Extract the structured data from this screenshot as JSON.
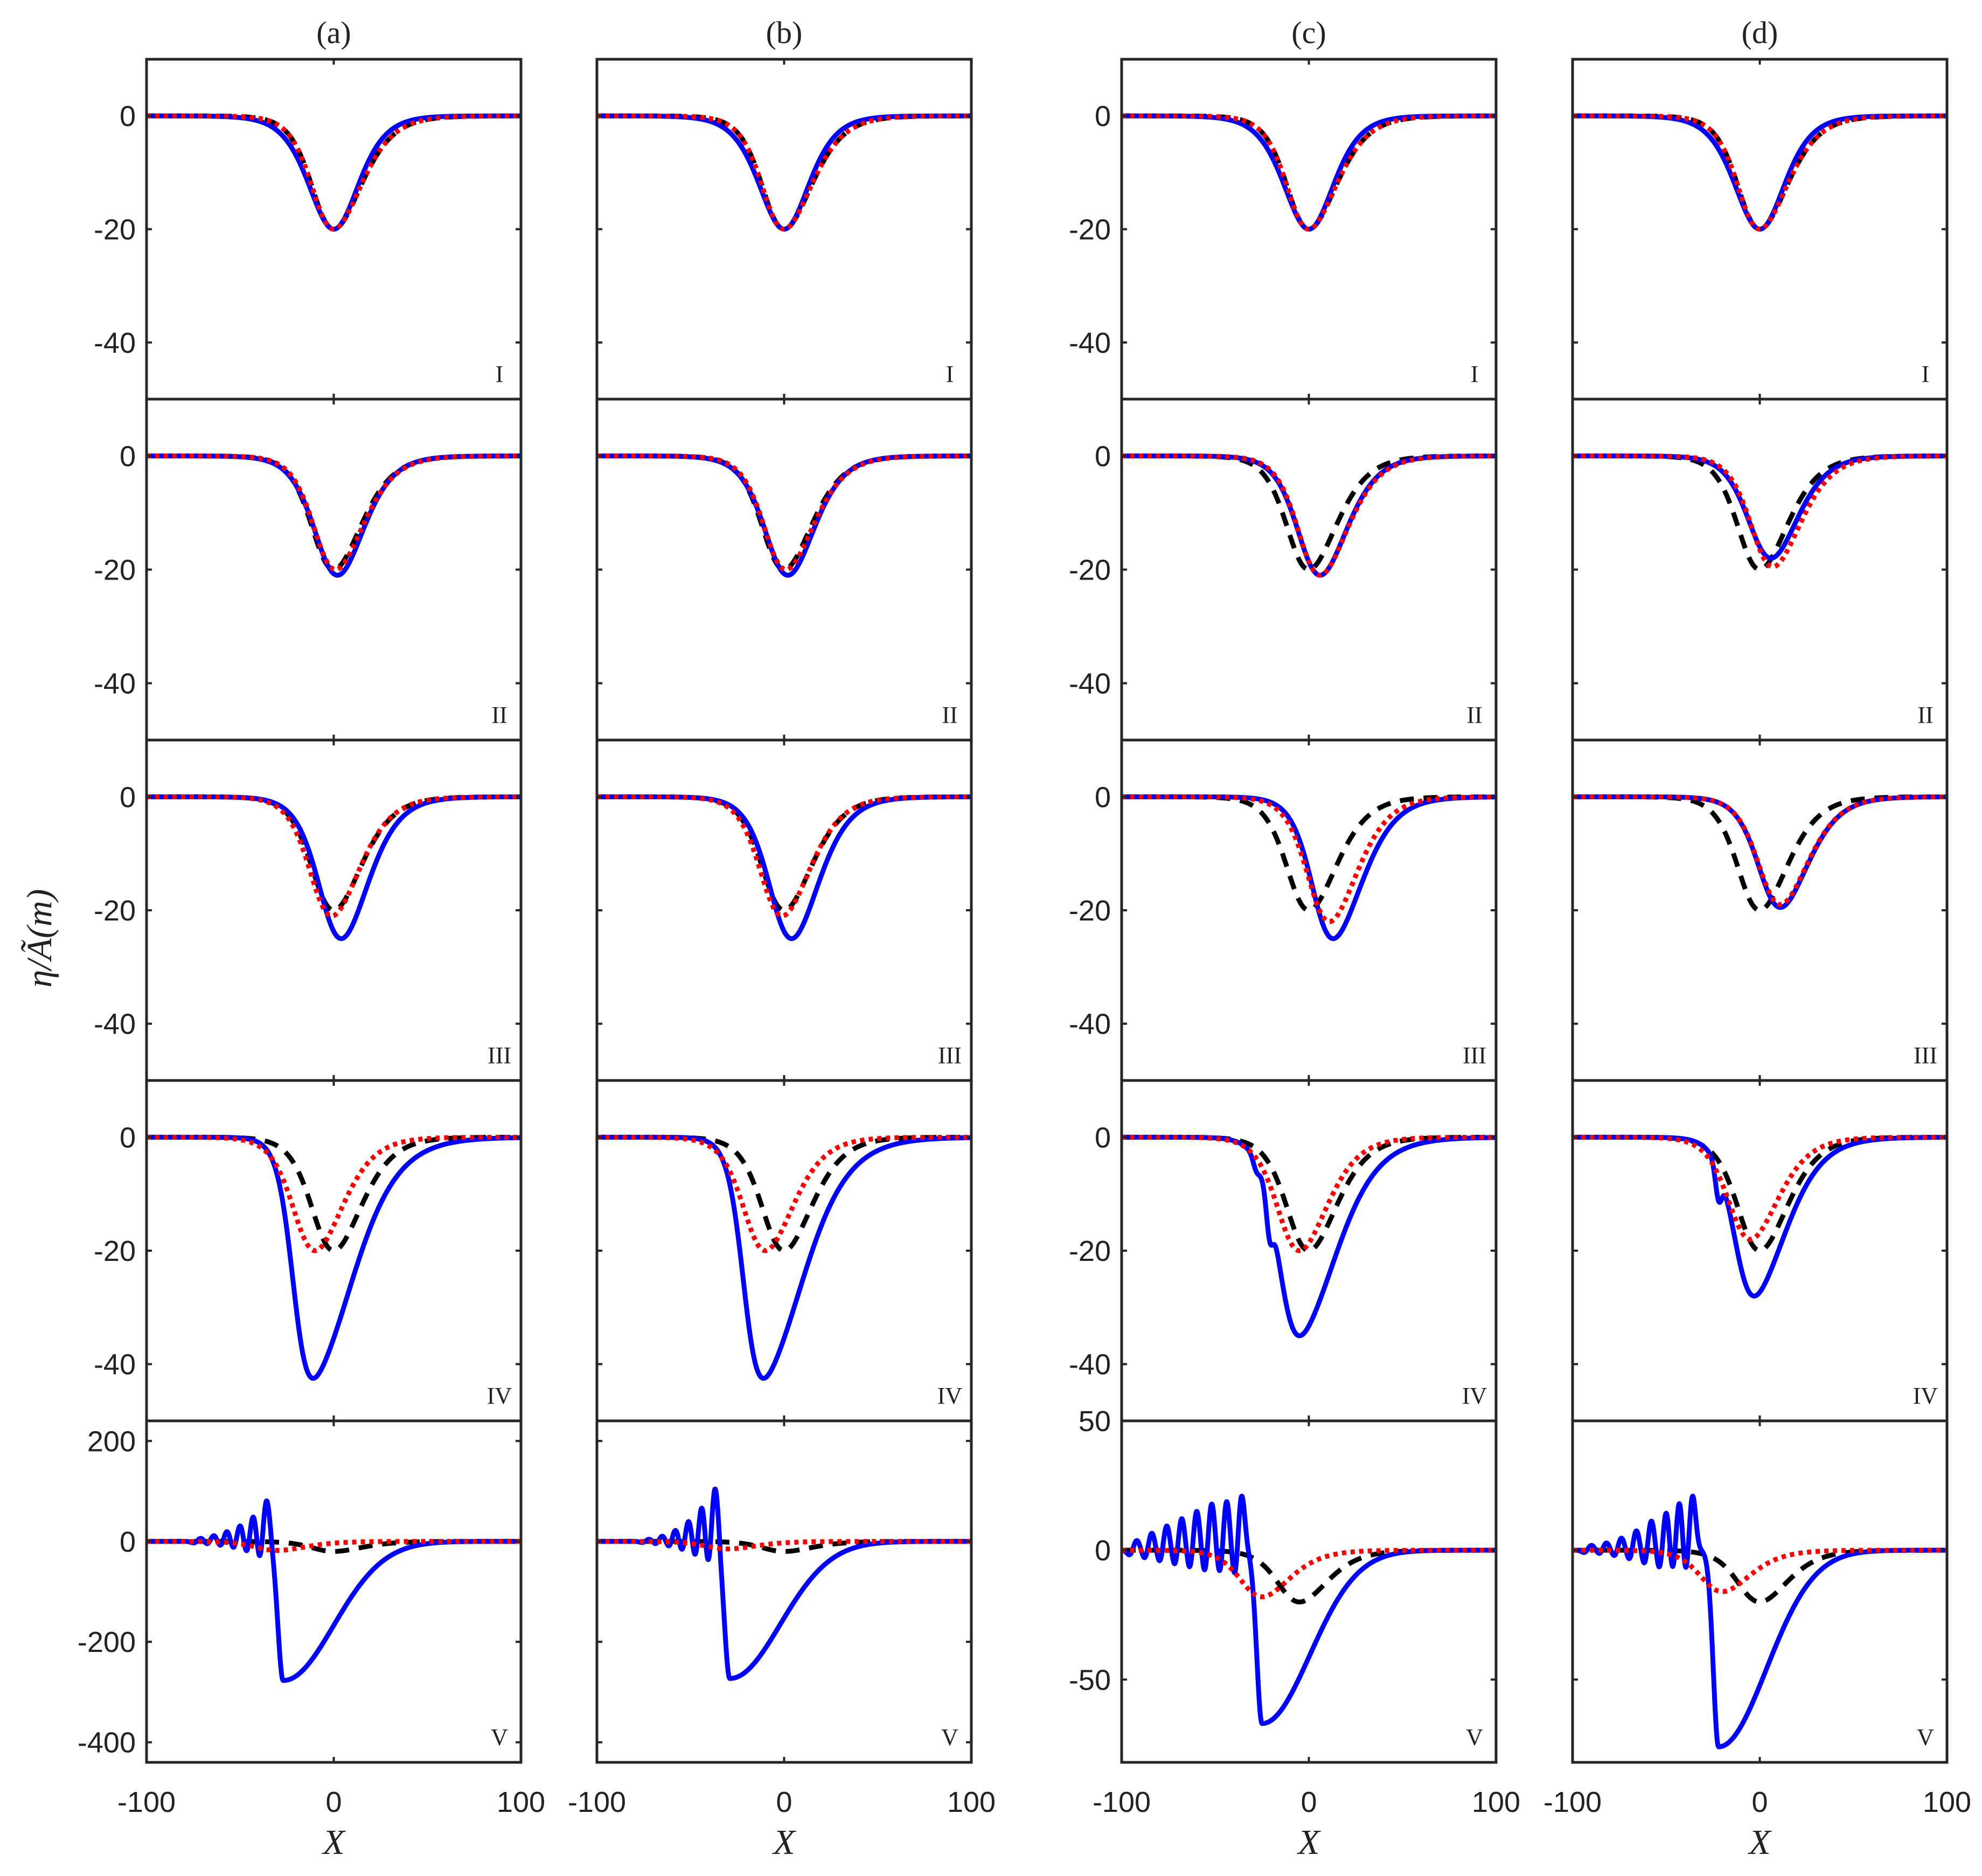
{
  "chart_data": {
    "type": "line",
    "layout": "4 columns x 5 rows of panels",
    "y_axis_label": "η/Ã(m)",
    "x_axis_label": "X",
    "column_titles": [
      "(a)",
      "(b)",
      "(c)",
      "(d)"
    ],
    "row_labels": [
      "I",
      "II",
      "III",
      "IV",
      "V"
    ],
    "xlim": [
      -100,
      100
    ],
    "x_ticks": [
      "-100",
      "0",
      "100"
    ],
    "series": [
      {
        "name": "solid",
        "color": "#0000ff",
        "style": "solid"
      },
      {
        "name": "dashed",
        "color": "#000000",
        "style": "dashed"
      },
      {
        "name": "dotted",
        "color": "#ff0000",
        "style": "dotted"
      }
    ],
    "y_axes": {
      "rows_I_to_IV": {
        "ylim": [
          -50,
          10
        ],
        "ticks": [
          0,
          -20,
          -40
        ],
        "tick_labels": [
          "0",
          "-20",
          "-40"
        ]
      },
      "row_V_a_b": {
        "ylim": [
          -440,
          240
        ],
        "ticks": [
          200,
          0,
          -200,
          -400
        ],
        "tick_labels": [
          "200",
          "0",
          "-200",
          "-400"
        ]
      },
      "row_V_c_d": {
        "ylim": [
          -82,
          50
        ],
        "ticks": [
          50,
          0,
          -50
        ],
        "tick_labels": [
          "50",
          "0",
          "-50"
        ]
      }
    },
    "panels": [
      {
        "col": 0,
        "row": 0,
        "solid": {
          "depth": 20,
          "center": 0,
          "width": 20,
          "skew": 0
        },
        "dashed": {
          "depth": 20,
          "center": 0
        },
        "dotted": {
          "depth": 20,
          "center": 0
        }
      },
      {
        "col": 0,
        "row": 1,
        "solid": {
          "depth": 21,
          "center": 2,
          "width": 20,
          "skew": 0.08
        },
        "dashed": {
          "depth": 20,
          "center": 0
        },
        "dotted": {
          "depth": 20,
          "center": 1
        }
      },
      {
        "col": 0,
        "row": 2,
        "solid": {
          "depth": 25,
          "center": 4,
          "width": 20,
          "skew": 0.12
        },
        "dashed": {
          "depth": 20,
          "center": 0
        },
        "dotted": {
          "depth": 21,
          "center": -1
        }
      },
      {
        "col": 0,
        "row": 3,
        "solid": {
          "depth": 42.5,
          "center": -11,
          "width": 22,
          "skew": 0.45
        },
        "dashed": {
          "depth": 20,
          "center": 0
        },
        "dotted": {
          "depth": 20,
          "center": -10
        }
      },
      {
        "col": 0,
        "row": 4,
        "solid": {
          "depth": 277,
          "center": -27,
          "width": 38,
          "front": -36,
          "ripples": [
            {
              "x": -36,
              "amp": 85
            },
            {
              "x": -43,
              "amp": 55
            },
            {
              "x": -50,
              "amp": 35
            },
            {
              "x": -57,
              "amp": 22
            },
            {
              "x": -64,
              "amp": 13
            },
            {
              "x": -71,
              "amp": 7
            }
          ]
        },
        "dashed": {
          "depth": 20,
          "center": 0
        },
        "dotted": {
          "depth": 18,
          "center": -30
        }
      },
      {
        "col": 1,
        "row": 0,
        "solid": {
          "depth": 20,
          "center": 0,
          "width": 20,
          "skew": 0
        },
        "dashed": {
          "depth": 20,
          "center": 0
        },
        "dotted": {
          "depth": 20,
          "center": 0
        }
      },
      {
        "col": 1,
        "row": 1,
        "solid": {
          "depth": 21,
          "center": 2,
          "width": 20,
          "skew": 0.08
        },
        "dashed": {
          "depth": 20,
          "center": 0
        },
        "dotted": {
          "depth": 20,
          "center": 1
        }
      },
      {
        "col": 1,
        "row": 2,
        "solid": {
          "depth": 25,
          "center": 4,
          "width": 20,
          "skew": 0.12
        },
        "dashed": {
          "depth": 20,
          "center": 0
        },
        "dotted": {
          "depth": 21,
          "center": -1
        }
      },
      {
        "col": 1,
        "row": 3,
        "solid": {
          "depth": 42.5,
          "center": -11,
          "width": 22,
          "skew": 0.45
        },
        "dashed": {
          "depth": 20,
          "center": 0
        },
        "dotted": {
          "depth": 20,
          "center": -10
        }
      },
      {
        "col": 1,
        "row": 4,
        "solid": {
          "depth": 273,
          "center": -29,
          "width": 38,
          "front": -37,
          "ripples": [
            {
              "x": -37,
              "amp": 110
            },
            {
              "x": -44,
              "amp": 75
            },
            {
              "x": -51,
              "amp": 45
            },
            {
              "x": -58,
              "amp": 25
            },
            {
              "x": -65,
              "amp": 12
            },
            {
              "x": -72,
              "amp": 5
            }
          ]
        },
        "dashed": {
          "depth": 20,
          "center": 0
        },
        "dotted": {
          "depth": 15,
          "center": -30
        }
      },
      {
        "col": 2,
        "row": 0,
        "solid": {
          "depth": 20,
          "center": 0,
          "width": 20,
          "skew": 0
        },
        "dashed": {
          "depth": 20,
          "center": 0
        },
        "dotted": {
          "depth": 20,
          "center": 0
        }
      },
      {
        "col": 2,
        "row": 1,
        "solid": {
          "depth": 21,
          "center": 6,
          "width": 20,
          "skew": 0.12
        },
        "dashed": {
          "depth": 20,
          "center": 0
        },
        "dotted": {
          "depth": 21,
          "center": 6
        }
      },
      {
        "col": 2,
        "row": 2,
        "solid": {
          "depth": 25,
          "center": 13,
          "width": 20,
          "skew": 0.2
        },
        "dashed": {
          "depth": 20,
          "center": 0
        },
        "dotted": {
          "depth": 22,
          "center": 11
        }
      },
      {
        "col": 2,
        "row": 3,
        "solid": {
          "depth": 35,
          "center": -5,
          "width": 22,
          "skew": 0.35,
          "small_dips": [
            {
              "x": -28,
              "depth": 3
            },
            {
              "x": -21,
              "depth": 10
            }
          ]
        },
        "dashed": {
          "depth": 20,
          "center": 0
        },
        "dotted": {
          "depth": 20,
          "center": -5
        }
      },
      {
        "col": 2,
        "row": 4,
        "solid": {
          "depth": 67,
          "center": -25,
          "width": 36,
          "front": -36,
          "ripples": [
            {
              "x": -36,
              "amp": 22
            },
            {
              "x": -44,
              "amp": 20
            },
            {
              "x": -52,
              "amp": 19
            },
            {
              "x": -60,
              "amp": 16
            },
            {
              "x": -68,
              "amp": 13
            },
            {
              "x": -76,
              "amp": 10
            },
            {
              "x": -84,
              "amp": 7
            },
            {
              "x": -92,
              "amp": 4
            }
          ]
        },
        "dashed": {
          "depth": 20,
          "center": -5
        },
        "dotted": {
          "depth": 18,
          "center": -25
        }
      },
      {
        "col": 3,
        "row": 0,
        "solid": {
          "depth": 20,
          "center": 0,
          "width": 20,
          "skew": 0
        },
        "dashed": {
          "depth": 20,
          "center": 0
        },
        "dotted": {
          "depth": 20,
          "center": 0
        }
      },
      {
        "col": 3,
        "row": 1,
        "solid": {
          "depth": 18,
          "center": 6,
          "width": 20,
          "skew": 0.1
        },
        "dashed": {
          "depth": 20,
          "center": 0
        },
        "dotted": {
          "depth": 19.5,
          "center": 7
        }
      },
      {
        "col": 3,
        "row": 2,
        "solid": {
          "depth": 19.5,
          "center": 11,
          "width": 20,
          "skew": 0.15
        },
        "dashed": {
          "depth": 20,
          "center": 0
        },
        "dotted": {
          "depth": 19,
          "center": 11
        }
      },
      {
        "col": 3,
        "row": 3,
        "solid": {
          "depth": 28,
          "center": -3,
          "width": 20,
          "skew": 0.3,
          "small_dips": [
            {
              "x": -22,
              "depth": 9
            }
          ]
        },
        "dashed": {
          "depth": 20,
          "center": 0
        },
        "dotted": {
          "depth": 18,
          "center": -5
        }
      },
      {
        "col": 3,
        "row": 4,
        "solid": {
          "depth": 76,
          "center": -22,
          "width": 36,
          "front": -36,
          "ripples": [
            {
              "x": -36,
              "amp": 22
            },
            {
              "x": -43,
              "amp": 20
            },
            {
              "x": -50,
              "amp": 16
            },
            {
              "x": -58,
              "amp": 12
            },
            {
              "x": -66,
              "amp": 8
            },
            {
              "x": -74,
              "amp": 5
            },
            {
              "x": -82,
              "amp": 3
            },
            {
              "x": -90,
              "amp": 2
            }
          ]
        },
        "dashed": {
          "depth": 20,
          "center": 0
        },
        "dotted": {
          "depth": 16,
          "center": -20
        }
      }
    ]
  }
}
